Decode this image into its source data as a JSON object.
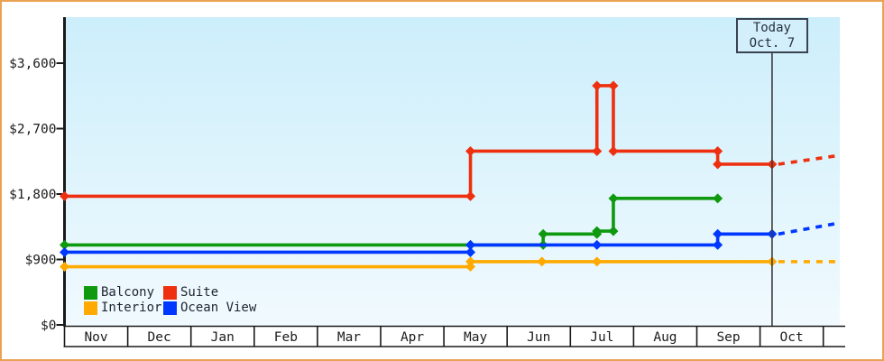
{
  "page": {
    "background": "#ffffff",
    "border_color": "#e9a254"
  },
  "chart_data": {
    "type": "line",
    "subtype": "step-after price history with dashed forecast",
    "title": "",
    "x_axis": {
      "months": [
        "Nov",
        "Dec",
        "Jan",
        "Feb",
        "Mar",
        "Apr",
        "May",
        "Jun",
        "Jul",
        "Aug",
        "Sep",
        "Oct"
      ]
    },
    "y_axis": {
      "tick_values": [
        0,
        900,
        1800,
        2700,
        3600
      ],
      "tick_labels": [
        "$0",
        "$900",
        "$1,800",
        "$2,700",
        "$3,600"
      ],
      "min": 0,
      "max": 3600
    },
    "today": {
      "line1": "Today",
      "line2": "Oct. 7",
      "month_offset": 11.19
    },
    "axis_color": "#1a1a1a",
    "today_line_color": "#3a3a3a",
    "bg_gradient": {
      "top": "#cceefb",
      "bottom": "#f1fafe"
    },
    "legend_position": "bottom-left inside plot",
    "series": [
      {
        "name": "Balcony",
        "color": "#0e990e",
        "points": [
          {
            "date": "Nov 1",
            "m": 0,
            "value": 1100
          },
          {
            "date": "May 14",
            "m": 6.42,
            "value": 1100
          },
          {
            "date": "Jun 18",
            "m": 7.57,
            "value": 1250
          },
          {
            "date": "Jul 14",
            "m": 8.42,
            "value": 1290
          },
          {
            "date": "Jul 22",
            "m": 8.68,
            "value": 1740
          },
          {
            "date": "Sep 11",
            "m": 10.33,
            "value": 1740
          }
        ],
        "projection": null
      },
      {
        "name": "Suite",
        "color": "#ee3010",
        "points": [
          {
            "date": "Nov 1",
            "m": 0,
            "value": 1770
          },
          {
            "date": "May 14",
            "m": 6.42,
            "value": 2390
          },
          {
            "date": "Jul 14",
            "m": 8.42,
            "value": 3290
          },
          {
            "date": "Jul 22",
            "m": 8.68,
            "value": 2390
          },
          {
            "date": "Sep 11",
            "m": 10.33,
            "value": 2210
          },
          {
            "date": "Oct 7",
            "m": 11.19,
            "value": 2210
          }
        ],
        "projection": {
          "m": 12.24,
          "value": 2330
        }
      },
      {
        "name": "Interior",
        "color": "#ffaa00",
        "points": [
          {
            "date": "Nov 1",
            "m": 0,
            "value": 800
          },
          {
            "date": "May 14",
            "m": 6.42,
            "value": 870
          },
          {
            "date": "Jun 18",
            "m": 7.55,
            "value": 870
          },
          {
            "date": "Jul 14",
            "m": 8.42,
            "value": 870
          },
          {
            "date": "Oct 7",
            "m": 11.19,
            "value": 870
          }
        ],
        "projection": {
          "m": 12.24,
          "value": 870
        }
      },
      {
        "name": "Ocean View",
        "color": "#0038ff",
        "points": [
          {
            "date": "Nov 1",
            "m": 0,
            "value": 1000
          },
          {
            "date": "May 14",
            "m": 6.42,
            "value": 1100
          },
          {
            "date": "Jul 14",
            "m": 8.42,
            "value": 1100
          },
          {
            "date": "Sep 11",
            "m": 10.33,
            "value": 1250
          },
          {
            "date": "Oct 7",
            "m": 11.19,
            "value": 1250
          }
        ],
        "projection": {
          "m": 12.24,
          "value": 1400
        }
      }
    ]
  }
}
